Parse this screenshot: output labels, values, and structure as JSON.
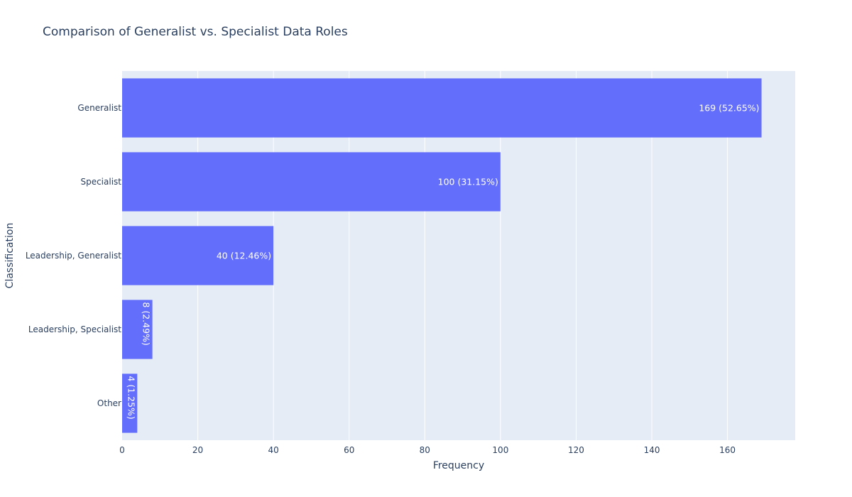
{
  "chart_data": {
    "type": "bar",
    "orientation": "horizontal",
    "title": "Comparison of Generalist vs. Specialist Data Roles",
    "xlabel": "Frequency",
    "ylabel": "Classification",
    "categories": [
      "Generalist",
      "Specialist",
      "Leadership, Generalist",
      "Leadership, Specialist",
      "Other"
    ],
    "values": [
      169,
      100,
      40,
      8,
      4
    ],
    "labels": [
      "169 (52.65%)",
      "100 (31.15%)",
      "40 (12.46%)",
      "8 (2.49%)",
      "4 (1.25%)"
    ],
    "x_ticks": [
      "0",
      "20",
      "40",
      "60",
      "80",
      "100",
      "120",
      "140",
      "160"
    ],
    "x_tick_values": [
      0,
      20,
      40,
      60,
      80,
      100,
      120,
      140,
      160
    ],
    "xlim": [
      0,
      177.9
    ],
    "grid": true,
    "legend": "none",
    "colors": {
      "bar": "#636efa",
      "plot_background": "#e5ecf6",
      "grid": "#ffffff",
      "text": "#2a3f5f",
      "bar_label": "#ffffff"
    }
  }
}
